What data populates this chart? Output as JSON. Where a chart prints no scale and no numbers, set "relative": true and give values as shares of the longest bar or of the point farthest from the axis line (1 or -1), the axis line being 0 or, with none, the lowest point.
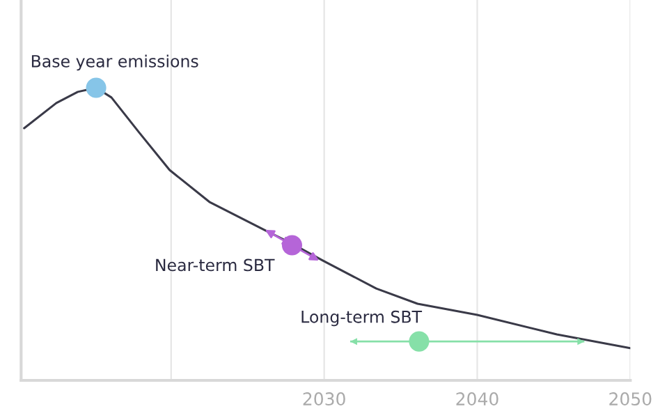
{
  "chart_data": {
    "type": "line",
    "relative": true,
    "xlim": [
      2010.2,
      2050
    ],
    "xticks": [
      {
        "value": 2020,
        "label": null
      },
      2030,
      2040,
      2050
    ],
    "grid": "x",
    "legend": false,
    "tick_labels": "x",
    "series": [
      {
        "color": "#3a3a48",
        "x": [
          2010.4,
          2012.5,
          2013.9,
          2015.1,
          2016.1,
          2017.9,
          2019.9,
          2022.5,
          2026.1,
          2027.9,
          2029.9,
          2033.4,
          2036.1,
          2040,
          2045.2,
          2050
        ],
        "values": [
          0.862,
          0.948,
          0.986,
          1.0,
          0.967,
          0.848,
          0.719,
          0.61,
          0.514,
          0.467,
          0.41,
          0.314,
          0.262,
          0.224,
          0.157,
          0.11
        ]
      },
      {
        "type": "scatter",
        "color": "#86c5e8",
        "x": [
          2015.1
        ],
        "values": [
          1.0
        ]
      },
      {
        "type": "scatter",
        "color": "#b565d8",
        "x": [
          2027.9
        ],
        "values": [
          0.462
        ]
      },
      {
        "type": "scatter",
        "color": "#86e0a8",
        "x": [
          2036.2
        ],
        "values": [
          0.133
        ],
        "xerrors": [
          [
            2031.7,
            2047
          ]
        ]
      }
    ],
    "annotations": [
      {
        "text": "Base year emissions",
        "x": 2015.1,
        "y": 1.0
      },
      {
        "text": "Near-term SBT",
        "x": 2027.9,
        "y": 0.462
      },
      {
        "text": "Long-term SBT",
        "x": 2036.2,
        "y": 0.133
      }
    ]
  }
}
